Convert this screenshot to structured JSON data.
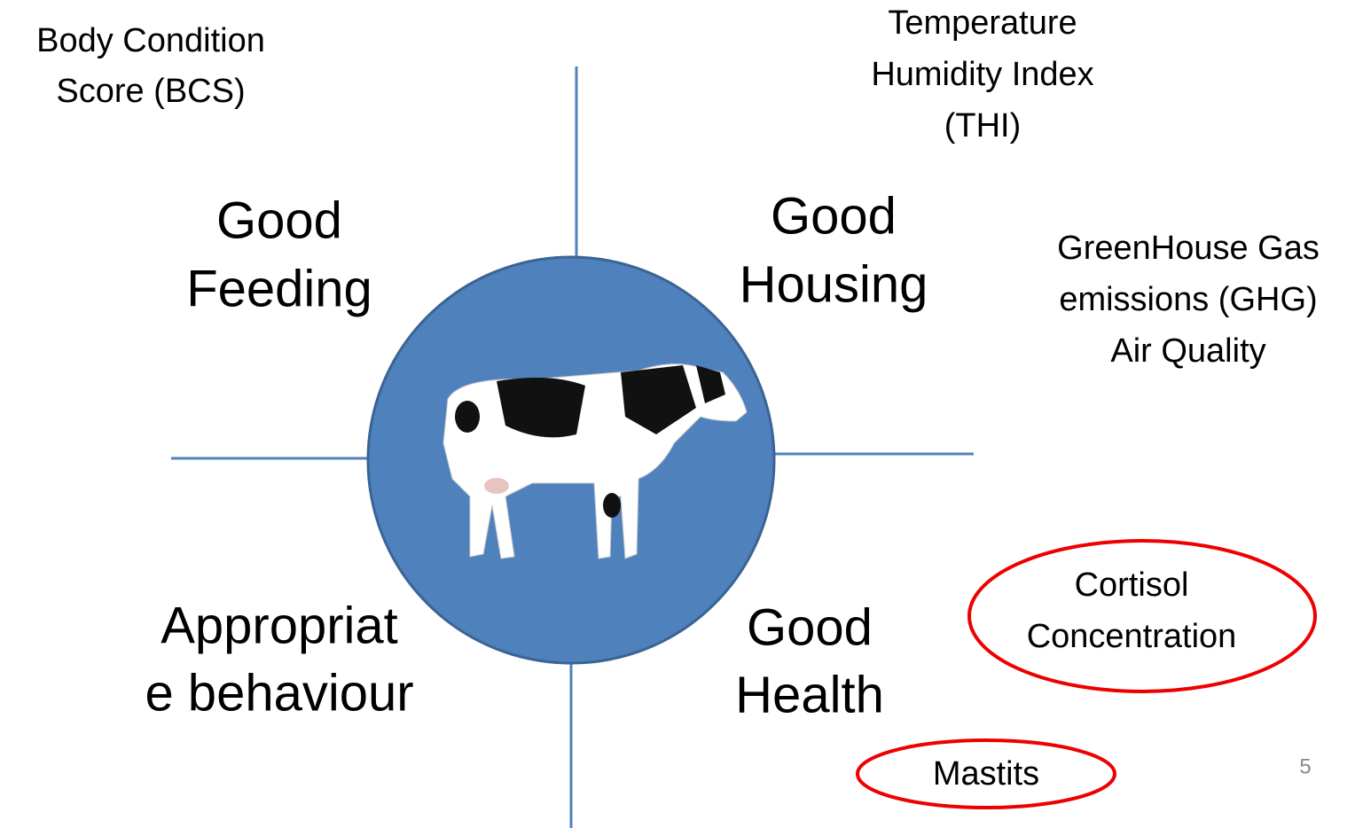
{
  "labels": {
    "bcs": [
      "Body Condition",
      "Score (BCS)"
    ],
    "thi": [
      "Temperature",
      "Humidity Index",
      "(THI)"
    ],
    "ghg": [
      "GreenHouse Gas",
      "emissions (GHG)",
      "Air Quality"
    ],
    "feeding": [
      "Good",
      "Feeding"
    ],
    "housing": [
      "Good",
      "Housing"
    ],
    "behaviour": [
      "Appropriat",
      "e behaviour"
    ],
    "health": [
      "Good",
      "Health"
    ],
    "cortisol": [
      "Cortisol",
      "Concentration"
    ],
    "mastitis": "Mastits",
    "page_number": "5"
  }
}
